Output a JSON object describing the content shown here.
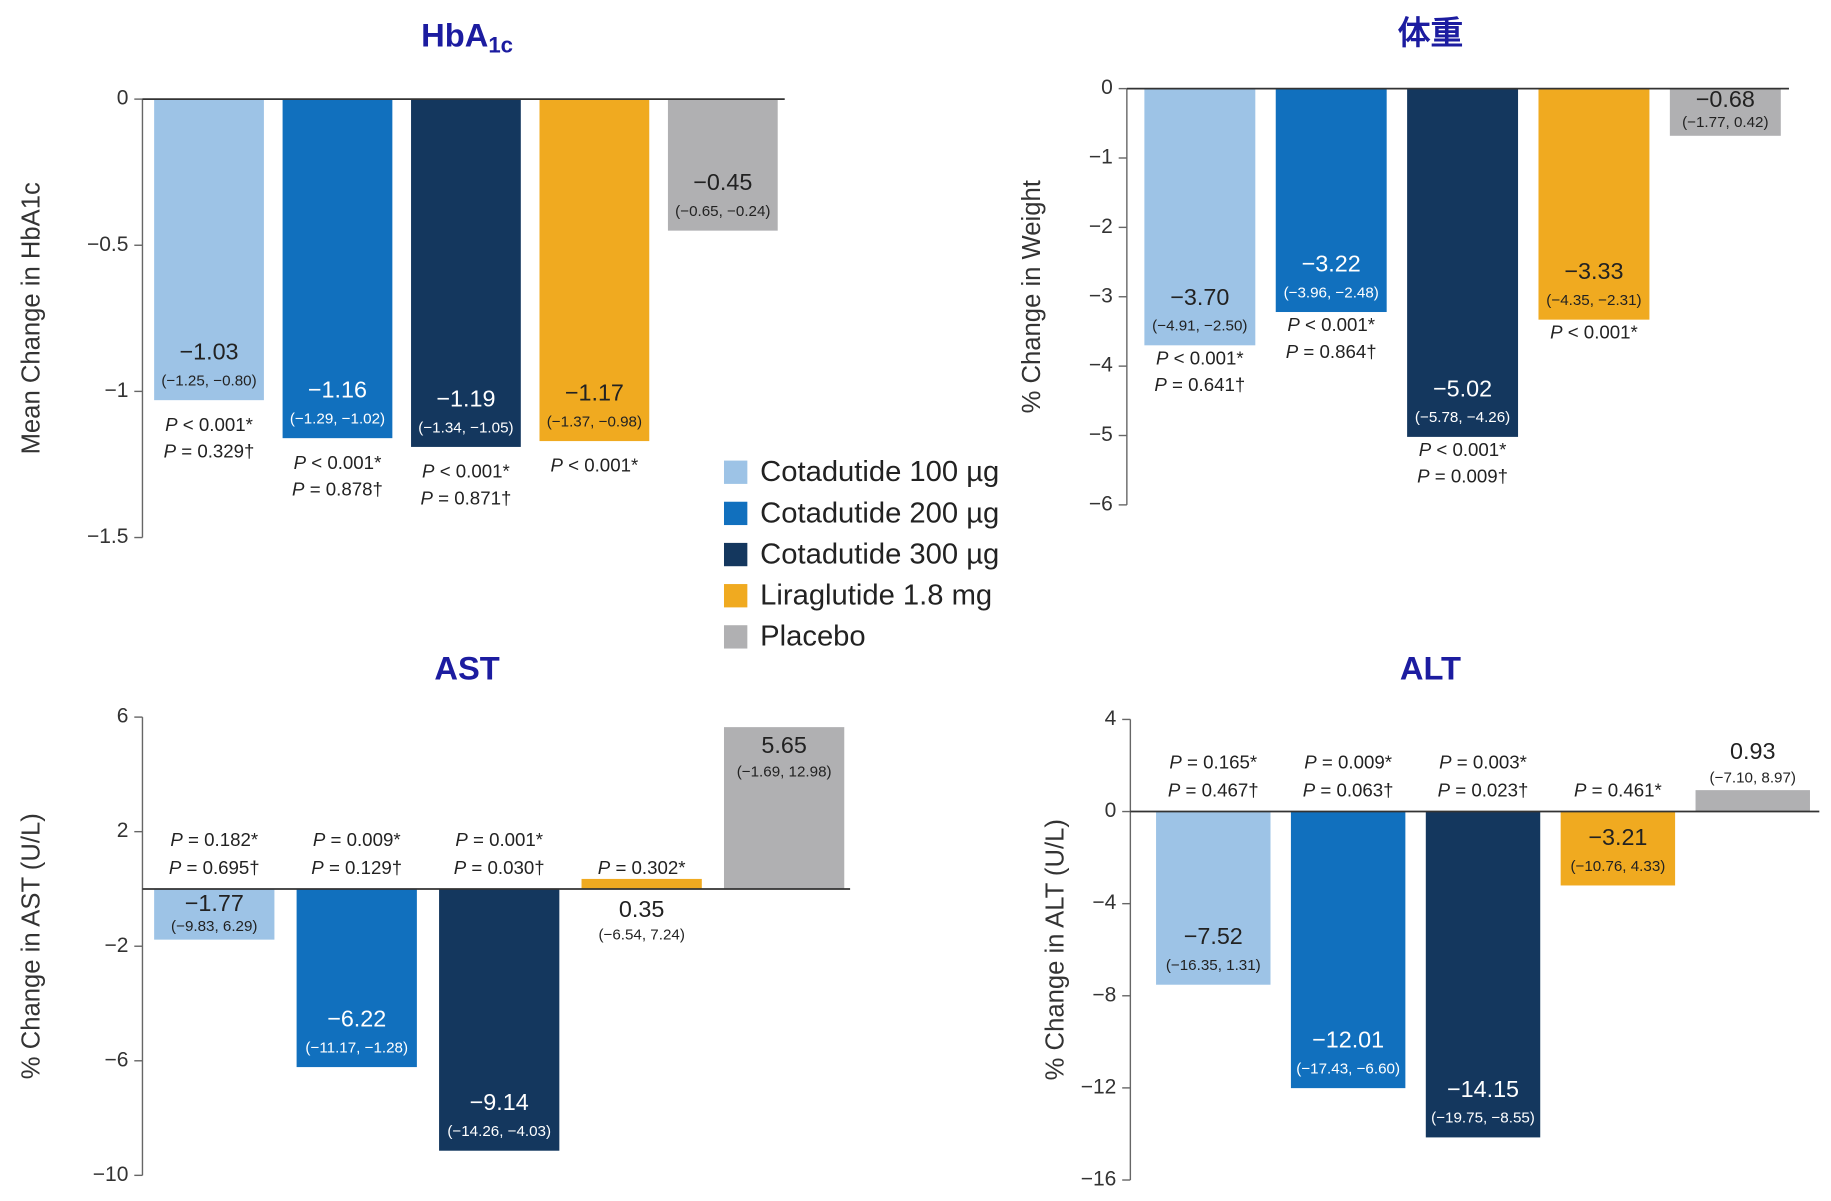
{
  "legend": [
    {
      "name": "Cotadutide 100 µg",
      "color": "#9dc3e6"
    },
    {
      "name": "Cotadutide 200 µg",
      "color": "#1170be"
    },
    {
      "name": "Cotadutide 300 µg",
      "color": "#14375e"
    },
    {
      "name": "Liraglutide 1.8 mg",
      "color": "#f0aa20"
    },
    {
      "name": "Placebo",
      "color": "#b0b0b2"
    }
  ],
  "chart_data": [
    {
      "type": "bar",
      "title": "HbA",
      "title_subscript": "1c",
      "ylabel": "Mean Change in HbA1c",
      "values": [
        -1.03,
        -1.16,
        -1.19,
        -1.17,
        -0.45
      ],
      "value_labels": [
        "−1.03",
        "−1.16",
        "−1.19",
        "−1.17",
        "−0.45"
      ],
      "ci_labels": [
        "(−1.25, −0.80)",
        "(−1.29, −1.02)",
        "(−1.34, −1.05)",
        "(−1.37, −0.98)",
        "(−0.65, −0.24)"
      ],
      "p_labels": [
        [
          "P < 0.001*",
          "P = 0.329†"
        ],
        [
          "P < 0.001*",
          "P = 0.878†"
        ],
        [
          "P < 0.001*",
          "P = 0.871†"
        ],
        [
          "P < 0.001*"
        ],
        []
      ],
      "ylim": [
        -1.5,
        0
      ],
      "yticks": [
        0,
        {
          "value": -0.5,
          "label": "−0.5"
        },
        {
          "value": -1,
          "label": "−1"
        },
        {
          "value": -1.5,
          "label": "−1.5"
        }
      ]
    },
    {
      "type": "bar",
      "title": "体重",
      "ylabel": "% Change in Weight",
      "values": [
        -3.7,
        -3.22,
        -5.02,
        -3.33,
        -0.68
      ],
      "value_labels": [
        "−3.70",
        "−3.22",
        "−5.02",
        "−3.33",
        "−0.68"
      ],
      "ci_labels": [
        "(−4.91, −2.50)",
        "(−3.96, −2.48)",
        "(−5.78, −4.26)",
        "(−4.35, −2.31)",
        "(−1.77, 0.42)"
      ],
      "p_labels": [
        [
          "P < 0.001*",
          "P = 0.641†"
        ],
        [
          "P < 0.001*",
          "P = 0.864†"
        ],
        [
          "P < 0.001*",
          "P = 0.009†"
        ],
        [
          "P < 0.001*"
        ],
        []
      ],
      "ylim": [
        -6,
        0
      ],
      "yticks": [
        0,
        {
          "value": -1,
          "label": "−1"
        },
        {
          "value": -2,
          "label": "−2"
        },
        {
          "value": -3,
          "label": "−3"
        },
        {
          "value": -4,
          "label": "−4"
        },
        {
          "value": -5,
          "label": "−5"
        },
        {
          "value": -6,
          "label": "−6"
        }
      ]
    },
    {
      "type": "bar",
      "title": "AST",
      "ylabel": "% Change in AST (U/L)",
      "values": [
        -1.77,
        -6.22,
        -9.14,
        0.35,
        5.65
      ],
      "value_labels": [
        "−1.77",
        "−6.22",
        "−9.14",
        "0.35",
        "5.65"
      ],
      "ci_labels": [
        "(−9.83, 6.29)",
        "(−11.17, −1.28)",
        "(−14.26, −4.03)",
        "(−6.54, 7.24)",
        "(−1.69, 12.98)"
      ],
      "p_labels": [
        [
          "P = 0.182*",
          "P = 0.695†"
        ],
        [
          "P = 0.009*",
          "P = 0.129†"
        ],
        [
          "P = 0.001*",
          "P = 0.030†"
        ],
        [
          "P = 0.302*"
        ],
        []
      ],
      "ylim": [
        -10,
        6
      ],
      "yticks": [
        6,
        2,
        {
          "value": -2,
          "label": "−2"
        },
        {
          "value": -6,
          "label": "−6"
        },
        {
          "value": -10,
          "label": "−10"
        }
      ]
    },
    {
      "type": "bar",
      "title": "ALT",
      "ylabel": "% Change in ALT (U/L)",
      "values": [
        -7.52,
        -12.01,
        -14.15,
        -3.21,
        0.93
      ],
      "value_labels": [
        "−7.52",
        "−12.01",
        "−14.15",
        "−3.21",
        "0.93"
      ],
      "ci_labels": [
        "(−16.35, 1.31)",
        "(−17.43, −6.60)",
        "(−19.75, −8.55)",
        "(−10.76, 4.33)",
        "(−7.10, 8.97)"
      ],
      "p_labels": [
        [
          "P = 0.165*",
          "P = 0.467†"
        ],
        [
          "P = 0.009*",
          "P = 0.063†"
        ],
        [
          "P = 0.003*",
          "P = 0.023†"
        ],
        [
          "P = 0.461*"
        ],
        []
      ],
      "ylim": [
        -16,
        4
      ],
      "yticks": [
        4,
        0,
        {
          "value": -4,
          "label": "−4"
        },
        {
          "value": -8,
          "label": "−8"
        },
        {
          "value": -12,
          "label": "−12"
        },
        {
          "value": -16,
          "label": "−16"
        }
      ]
    }
  ]
}
